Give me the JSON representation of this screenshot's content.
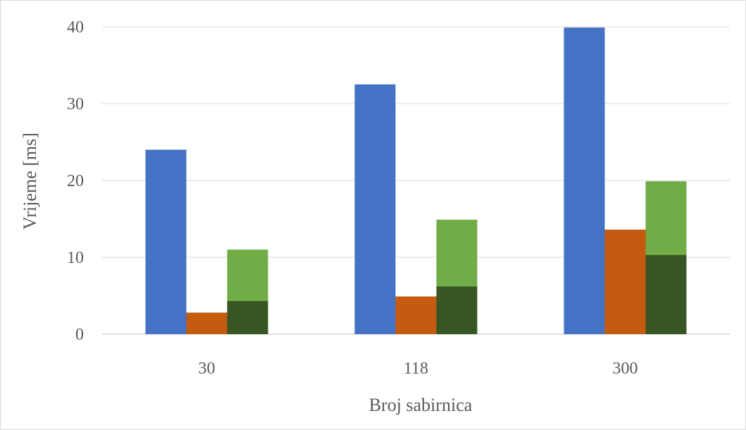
{
  "chart_data": {
    "type": "bar",
    "title": "",
    "xlabel": "Broj sabirnica",
    "ylabel": "Vrijeme  [ms]",
    "categories": [
      "30",
      "118",
      "300"
    ],
    "ylim": [
      0,
      40
    ],
    "yticks": [
      0,
      10,
      20,
      30,
      40
    ],
    "grid": true,
    "legend": "none",
    "series": [
      {
        "color": "#4472c4",
        "values": [
          24.0,
          32.5,
          39.9
        ]
      },
      {
        "color": "#c55a11",
        "values": [
          2.8,
          4.9,
          13.6
        ]
      },
      {
        "color": "#70ad47",
        "stacked_base_color": "#375623",
        "values": [
          11.0,
          14.9,
          19.9
        ],
        "stacked_base_values": [
          4.3,
          6.2,
          10.3
        ]
      }
    ]
  }
}
